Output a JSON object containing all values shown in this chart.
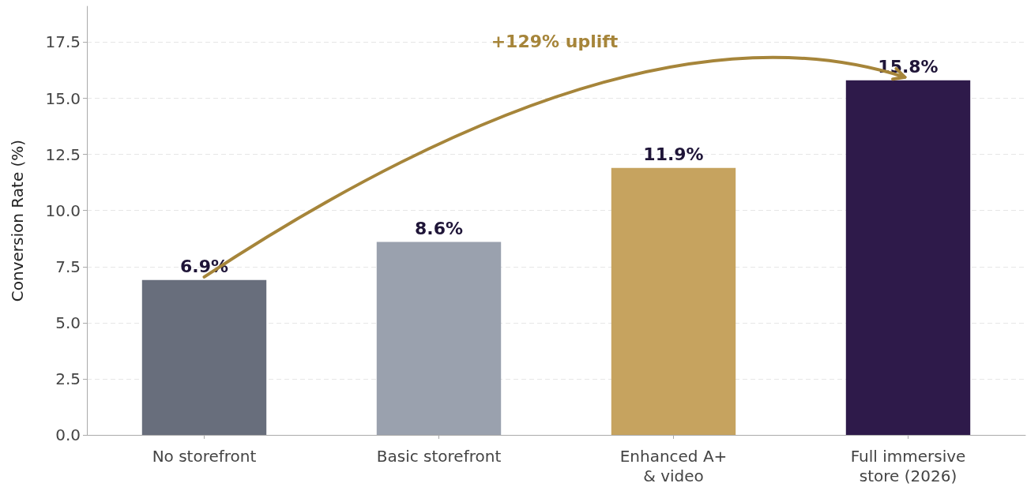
{
  "chart_data": {
    "type": "bar",
    "ylabel": "Conversion Rate (%)",
    "categories": [
      "No storefront",
      "Basic storefront",
      "Enhanced A+\n& video",
      "Full immersive\nstore (2026)"
    ],
    "values": [
      6.9,
      8.6,
      11.9,
      15.8
    ],
    "colors": [
      "#686e7c",
      "#9aa1ae",
      "#c6a35f",
      "#2e1a4a"
    ],
    "value_labels": [
      "6.9%",
      "8.6%",
      "11.9%",
      "15.8%"
    ],
    "ylim": [
      0,
      19.1
    ],
    "yticks": [
      {
        "value": 0,
        "label": "0.0"
      },
      {
        "value": 2.5,
        "label": "2.5"
      },
      {
        "value": 5,
        "label": "5.0"
      },
      {
        "value": 7.5,
        "label": "7.5"
      },
      {
        "value": 10,
        "label": "10.0"
      },
      {
        "value": 12.5,
        "label": "12.5"
      },
      {
        "value": 15,
        "label": "15.0"
      },
      {
        "value": 17.5,
        "label": "17.5"
      }
    ],
    "grid": "y",
    "annotations": [
      "+129% uplift"
    ]
  }
}
